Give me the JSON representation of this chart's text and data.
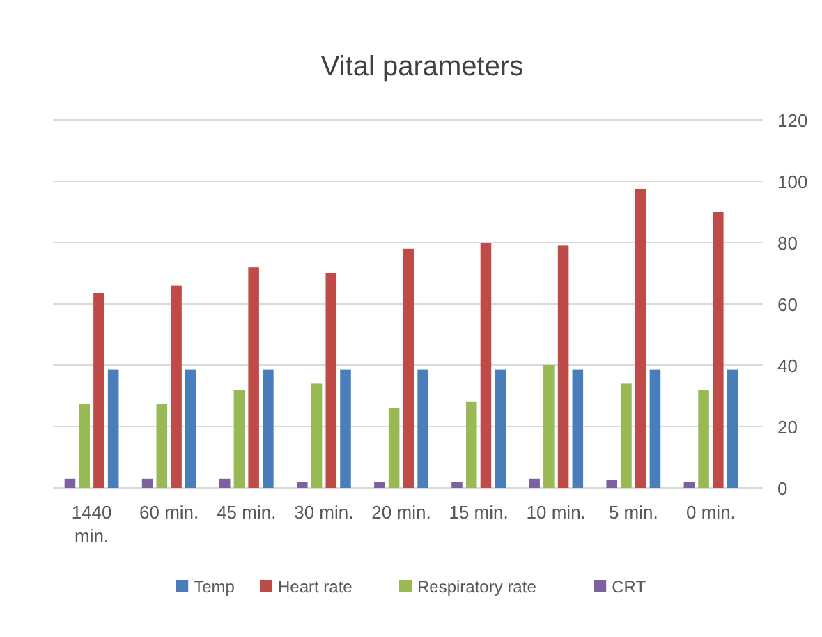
{
  "chart_data": {
    "type": "bar",
    "title": "Vital parameters",
    "categories": [
      "1440 min.",
      "60 min.",
      "45 min.",
      "30 min.",
      "20 min.",
      "15 min.",
      "10 min.",
      "5 min.",
      "0 min."
    ],
    "series": [
      {
        "name": "Temp",
        "color": "#4a7ebb",
        "values": [
          38.5,
          38.5,
          38.5,
          38.5,
          38.5,
          38.5,
          38.5,
          38.5,
          38.5
        ]
      },
      {
        "name": "Heart rate",
        "color": "#be4b48",
        "values": [
          63.5,
          66,
          72,
          70,
          78,
          80,
          79,
          97.5,
          90
        ]
      },
      {
        "name": "Respiratory rate",
        "color": "#98b954",
        "values": [
          27.5,
          27.5,
          32,
          34,
          26,
          28,
          40,
          34,
          32
        ]
      },
      {
        "name": "CRT",
        "color": "#7d60a0",
        "values": [
          3,
          3,
          3,
          2,
          2,
          2,
          3,
          2.5,
          2
        ]
      }
    ],
    "ylim": [
      0,
      120
    ],
    "yticks": [
      0,
      20,
      40,
      60,
      80,
      100,
      120
    ],
    "grid": "y",
    "legend": "bottom"
  }
}
